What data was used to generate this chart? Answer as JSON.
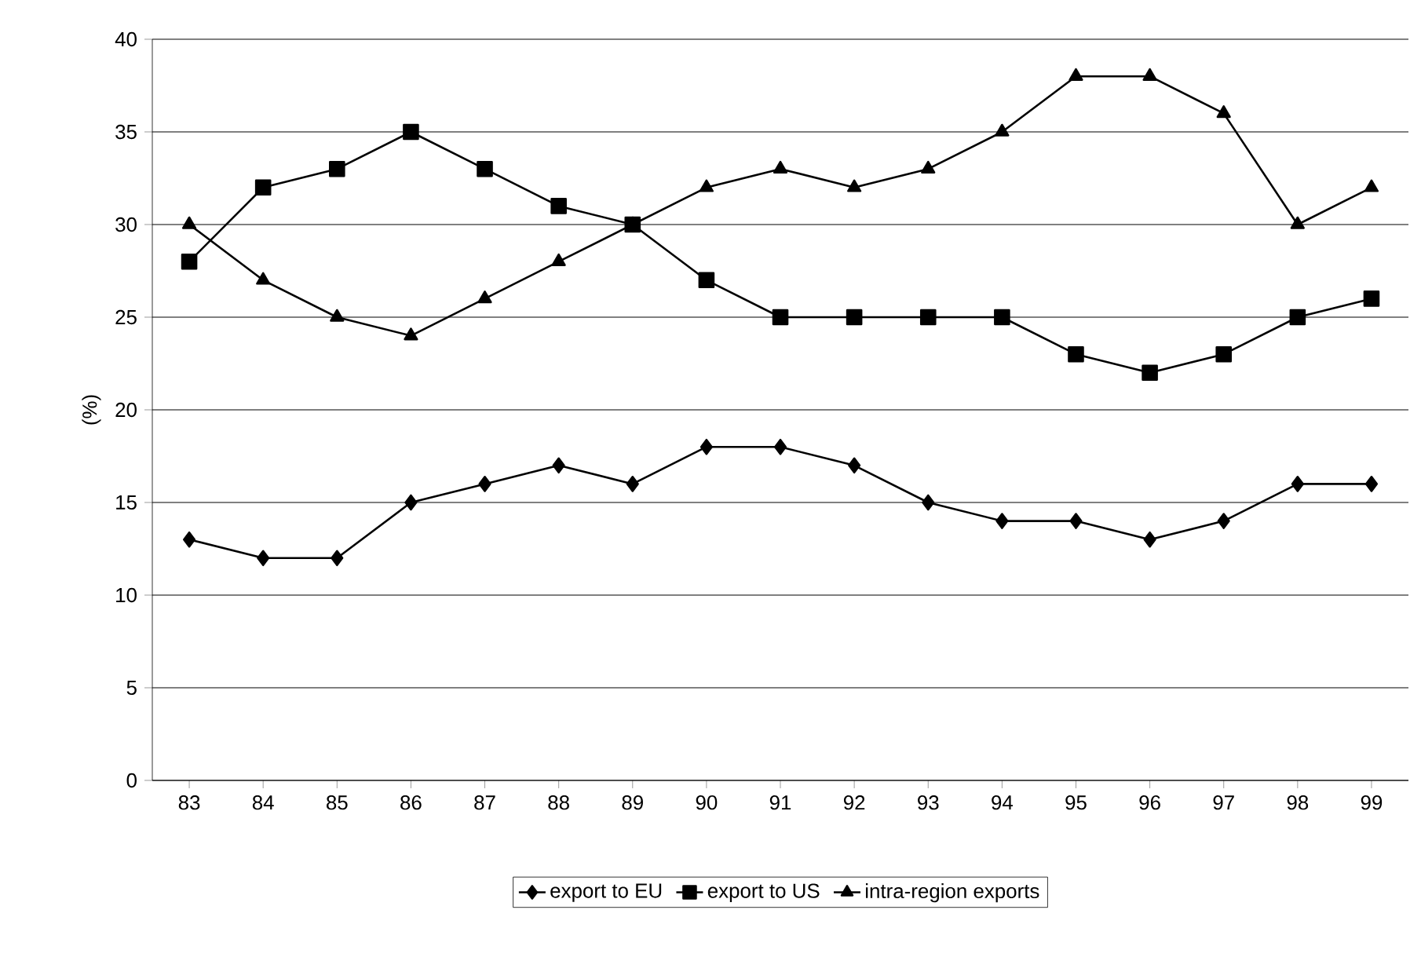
{
  "chart_data": {
    "type": "line",
    "ylabel": "(%)",
    "categories": [
      "83",
      "84",
      "85",
      "86",
      "87",
      "88",
      "89",
      "90",
      "91",
      "92",
      "93",
      "94",
      "95",
      "96",
      "97",
      "98",
      "99"
    ],
    "series": [
      {
        "name": "export to EU",
        "color": "#000000",
        "marker": "diamond",
        "values": [
          13,
          12,
          12,
          15,
          16,
          17,
          16,
          18,
          18,
          17,
          15,
          14,
          14,
          13,
          14,
          16,
          16
        ]
      },
      {
        "name": "export to US",
        "color": "#000000",
        "marker": "square",
        "values": [
          28,
          32,
          33,
          35,
          33,
          31,
          30,
          27,
          25,
          25,
          25,
          25,
          23,
          22,
          23,
          25,
          26
        ]
      },
      {
        "name": "intra-region exports",
        "color": "#000000",
        "marker": "triangle",
        "values": [
          30,
          27,
          25,
          24,
          26,
          28,
          30,
          32,
          33,
          32,
          33,
          35,
          38,
          38,
          36,
          30,
          32
        ]
      }
    ],
    "ylim": [
      0,
      40
    ],
    "yticks": [
      0,
      5,
      10,
      15,
      20,
      25,
      30,
      35,
      40
    ],
    "grid": "y",
    "legend": "bottom",
    "line_style": "solid"
  }
}
